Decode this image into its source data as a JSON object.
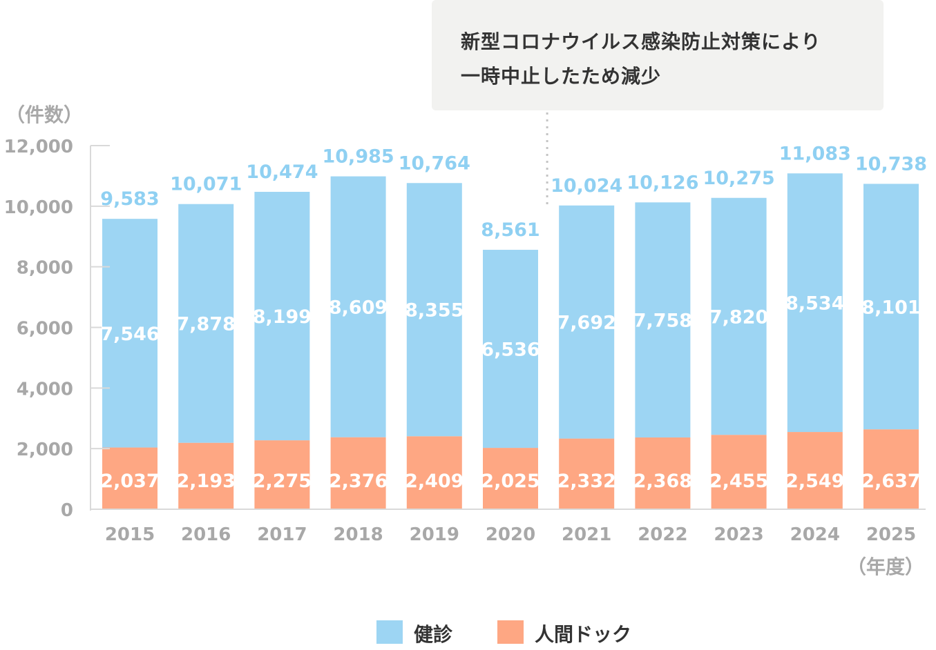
{
  "callout": {
    "line1": "新型コロナウイルス感染防止対策により",
    "line2": "一時中止したため減少"
  },
  "legend": [
    {
      "label": "健診",
      "color": "#9dd5f3"
    },
    {
      "label": "人間ドック",
      "color": "#fea783"
    }
  ],
  "chart_data": {
    "type": "bar",
    "stacked": true,
    "y_unit_label": "（件数）",
    "x_unit_label": "（年度）",
    "categories": [
      "2015",
      "2016",
      "2017",
      "2018",
      "2019",
      "2020",
      "2021",
      "2022",
      "2023",
      "2024",
      "2025"
    ],
    "series": [
      {
        "name": "人間ドック",
        "color": "#fea783",
        "values": [
          2037,
          2193,
          2275,
          2376,
          2409,
          2025,
          2332,
          2368,
          2455,
          2549,
          2637
        ],
        "labels": [
          "2,037",
          "2,193",
          "2,275",
          "2,376",
          "2,409",
          "2,025",
          "2,332",
          "2,368",
          "2,455",
          "2,549",
          "2,637"
        ]
      },
      {
        "name": "健診",
        "color": "#9dd5f3",
        "values": [
          7546,
          7878,
          8199,
          8609,
          8355,
          6536,
          7692,
          7758,
          7820,
          8534,
          8101
        ],
        "labels": [
          "7,546",
          "7,878",
          "8,199",
          "8,609",
          "8,355",
          "6,536",
          "7,692",
          "7,758",
          "7,820",
          "8,534",
          "8,101"
        ]
      }
    ],
    "totals": [
      9583,
      10071,
      10474,
      10985,
      10764,
      8561,
      10024,
      10126,
      10275,
      11083,
      10738
    ],
    "total_labels": [
      "9,583",
      "10,071",
      "10,474",
      "10,985",
      "10,764",
      "8,561",
      "10,024",
      "10,126",
      "10,275",
      "11,083",
      "10,738"
    ],
    "yticks": [
      0,
      2000,
      4000,
      6000,
      8000,
      10000,
      12000
    ],
    "ytick_labels": [
      "0",
      "2,000",
      "4,000",
      "6,000",
      "8,000",
      "10,000",
      "12,000"
    ],
    "ylim": [
      0,
      12000
    ],
    "annotation_category": "2020",
    "grid": false,
    "legend_position": "bottom-center"
  }
}
